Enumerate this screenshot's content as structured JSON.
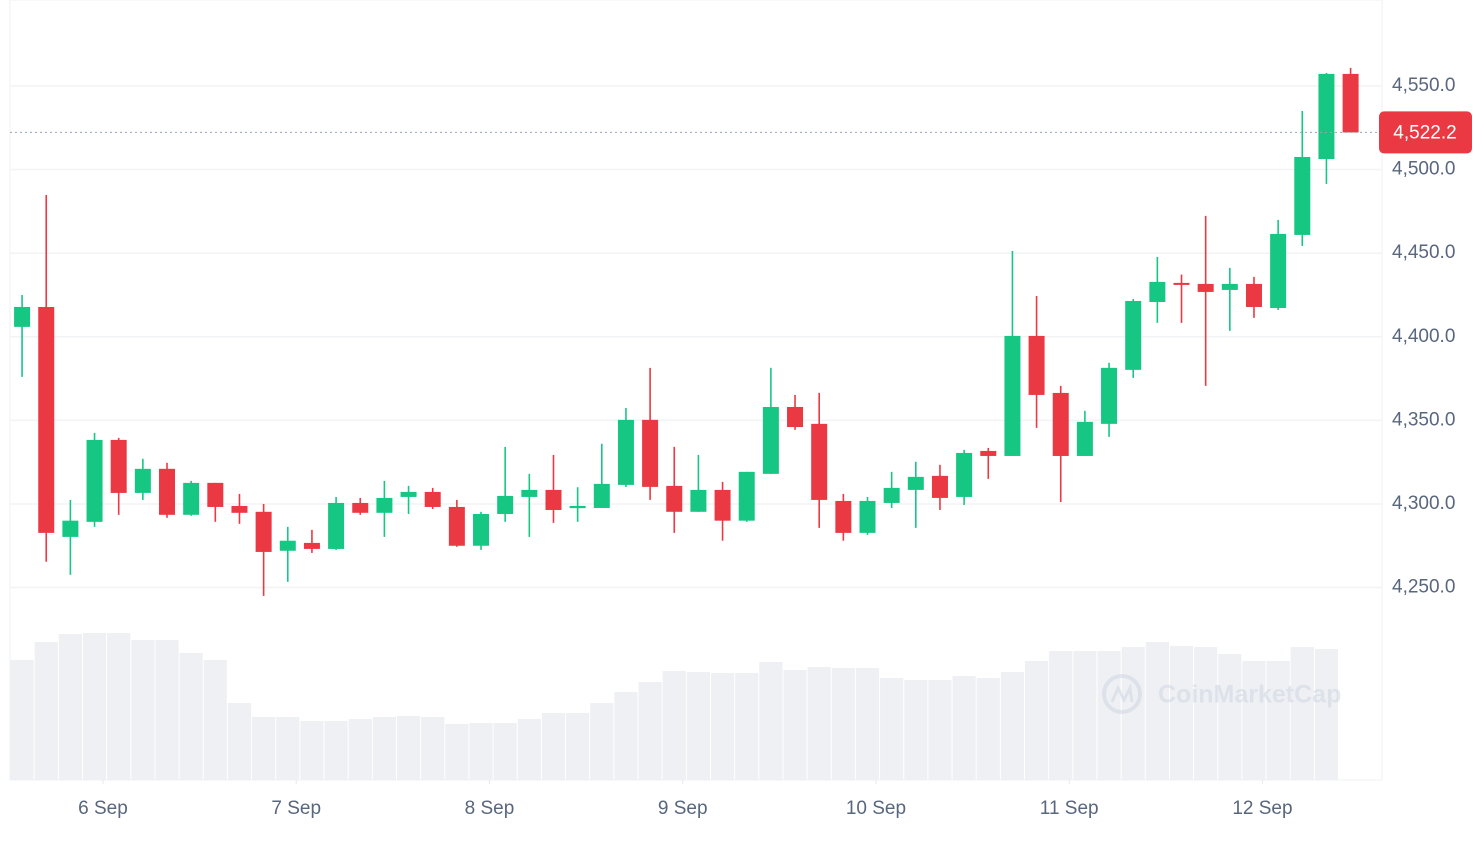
{
  "chart_data": {
    "type": "candlestick",
    "watermark": "CoinMarketCap",
    "up_color": "#16c784",
    "down_color": "#ea3943",
    "volume_color": "#eff0f3",
    "open": [
      4405.9,
      4417.8,
      4280.3,
      4289.3,
      4338.3,
      4306.6,
      4321,
      4293.5,
      4312.6,
      4298.8,
      4295.3,
      4272,
      4276.7,
      4273.1,
      4300.6,
      4294.7,
      4304.2,
      4307.2,
      4298.2,
      4275,
      4294,
      4304.2,
      4308.4,
      4297.5,
      4297.6,
      4311.4,
      4350.3,
      4310.8,
      4295.3,
      4308.4,
      4290,
      4318,
      4358,
      4347.9,
      4301.8,
      4282.7,
      4300.6,
      4308.4,
      4316.8,
      4304.2,
      4331.7,
      4328.7,
      4400.5,
      4366.4,
      4328.7,
      4347.9,
      4380.2,
      4420.8,
      4432.2,
      4431.6,
      4428,
      4431.6,
      4417.2,
      4460.9,
      4506.3,
      4557.2
    ],
    "high": [
      4425,
      4484.8,
      4302.4,
      4342.5,
      4339.5,
      4327,
      4324.6,
      4313.8,
      4312.6,
      4306,
      4300,
      4286.3,
      4284.5,
      4304.2,
      4303.6,
      4313.8,
      4310.8,
      4309.6,
      4302.4,
      4295.3,
      4334.1,
      4318,
      4329.3,
      4310,
      4336,
      4357.4,
      4381.4,
      4334.1,
      4329.3,
      4313.2,
      4319.2,
      4381.4,
      4365.2,
      4366.4,
      4306,
      4304.2,
      4319.2,
      4325.2,
      4323.4,
      4332.3,
      4333.5,
      4451.3,
      4424.4,
      4370.6,
      4355.7,
      4384.4,
      4422.6,
      4447.7,
      4437.2,
      4472.3,
      4441.2,
      4435.8,
      4469.9,
      4535,
      4557.8,
      4560.8
    ],
    "low": [
      4376,
      4265.4,
      4257.6,
      4286.3,
      4293.5,
      4302.4,
      4291.7,
      4292.9,
      4289.3,
      4288.1,
      4245,
      4253.4,
      4270.7,
      4272.5,
      4293.5,
      4280.3,
      4294,
      4297,
      4274.4,
      4272.5,
      4289.3,
      4280.3,
      4288.7,
      4289.3,
      4297.6,
      4310.2,
      4302.4,
      4282.7,
      4295.3,
      4278,
      4289.3,
      4318,
      4344.3,
      4285.7,
      4278,
      4281.5,
      4297.6,
      4285.7,
      4296.4,
      4299.4,
      4315,
      4328.7,
      4345.5,
      4301.2,
      4328.7,
      4340.1,
      4375.4,
      4408.3,
      4408.3,
      4370.6,
      4403.5,
      4411.3,
      4416,
      4454.3,
      4491.4,
      4522.2
    ],
    "close": [
      4417.8,
      4282.7,
      4290,
      4338.3,
      4306.6,
      4321,
      4293.5,
      4312.6,
      4298.2,
      4294.7,
      4271.3,
      4278,
      4273.1,
      4300.6,
      4294.7,
      4303.6,
      4307.2,
      4298.2,
      4275,
      4294,
      4304.8,
      4308.4,
      4296.4,
      4298.8,
      4312,
      4350.3,
      4310.2,
      4295.3,
      4308.4,
      4290,
      4319.2,
      4358,
      4346,
      4302.4,
      4282.7,
      4301.8,
      4309.6,
      4316.2,
      4303.6,
      4330.5,
      4328.7,
      4400.5,
      4365.2,
      4328.7,
      4349.1,
      4381.4,
      4421.4,
      4432.8,
      4431,
      4426.8,
      4431.6,
      4417.8,
      4461.5,
      4507.5,
      4557.2,
      4522.2
    ],
    "volume": [
      120,
      138,
      146,
      147,
      147,
      140,
      140,
      127,
      120,
      77,
      63,
      63,
      59,
      59,
      61,
      63,
      64,
      63,
      56,
      57,
      57,
      61,
      67,
      67,
      77,
      88,
      98,
      109,
      108,
      107,
      107,
      118,
      110,
      113,
      112,
      112,
      102,
      100,
      100,
      104,
      102,
      108,
      119,
      129,
      129,
      129,
      133,
      138,
      134,
      133,
      126,
      119,
      119,
      133,
      131,
      null
    ],
    "xlim": [
      -0.5,
      56.3
    ],
    "xticks": [
      {
        "value": 3.35,
        "label": "6 Sep"
      },
      {
        "value": 11.35,
        "label": "7 Sep"
      },
      {
        "value": 19.35,
        "label": "8 Sep"
      },
      {
        "value": 27.35,
        "label": "9 Sep"
      },
      {
        "value": 35.35,
        "label": "10 Sep"
      },
      {
        "value": 43.35,
        "label": "11 Sep"
      },
      {
        "value": 51.35,
        "label": "12 Sep"
      }
    ],
    "ylim": [
      4134.9,
      4601.4
    ],
    "yticks": [
      {
        "value": 4250,
        "label": "4,250.0"
      },
      {
        "value": 4300,
        "label": "4,300.0"
      },
      {
        "value": 4350,
        "label": "4,350.0"
      },
      {
        "value": 4400,
        "label": "4,400.0"
      },
      {
        "value": 4450,
        "label": "4,450.0"
      },
      {
        "value": 4500,
        "label": "4,500.0"
      },
      {
        "value": 4550,
        "label": "4,550.0"
      }
    ],
    "last_price": {
      "value": 4522.2,
      "label": "4,522.2"
    },
    "grid": true
  }
}
